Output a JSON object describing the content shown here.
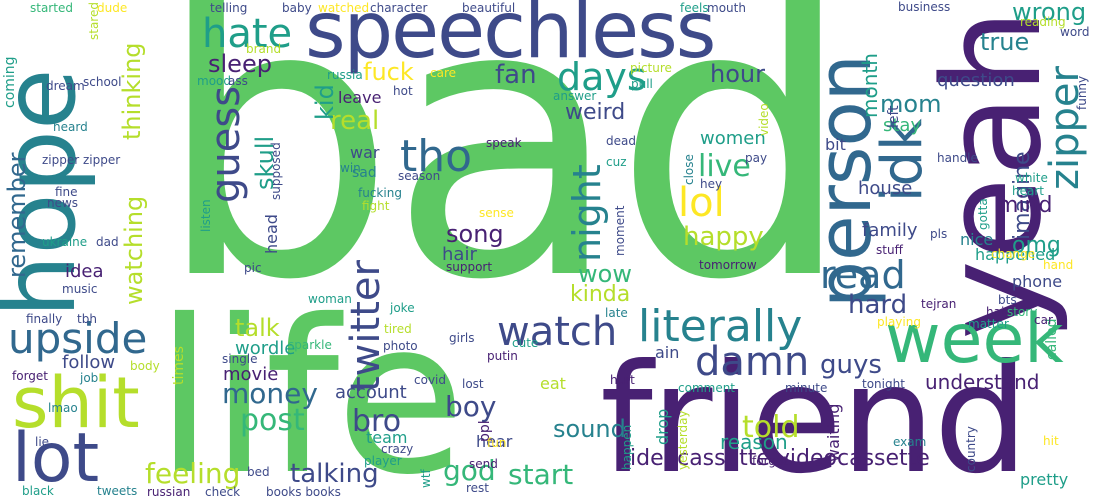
{
  "palette": {
    "dark_purple": "#482173",
    "indigo": "#3e4a89",
    "blue": "#31688e",
    "teal": "#26828e",
    "green_teal": "#1f9e89",
    "green": "#35b779",
    "light_green": "#5dc863",
    "lime": "#b5de2b",
    "yellow": "#fde725"
  },
  "words": [
    {
      "t": "bad",
      "c": "light_green"
    },
    {
      "t": "life",
      "c": "light_green"
    },
    {
      "t": "friend",
      "c": "dark_purple"
    },
    {
      "t": "yeah",
      "c": "dark_purple"
    },
    {
      "t": "speechless",
      "c": "indigo"
    },
    {
      "t": "hope",
      "c": "teal"
    },
    {
      "t": "shit",
      "c": "lime"
    },
    {
      "t": "lot",
      "c": "indigo"
    },
    {
      "t": "person",
      "c": "blue"
    },
    {
      "t": "week",
      "c": "green"
    },
    {
      "t": "idk",
      "c": "blue"
    },
    {
      "t": "upside",
      "c": "blue"
    },
    {
      "t": "literally",
      "c": "teal"
    },
    {
      "t": "watch",
      "c": "indigo"
    },
    {
      "t": "twitter",
      "c": "indigo"
    },
    {
      "t": "tho",
      "c": "blue"
    },
    {
      "t": "days",
      "c": "green_teal"
    },
    {
      "t": "hate",
      "c": "green_teal"
    },
    {
      "t": "guess",
      "c": "indigo"
    },
    {
      "t": "damn",
      "c": "indigo"
    },
    {
      "t": "night",
      "c": "teal"
    },
    {
      "t": "read",
      "c": "blue"
    },
    {
      "t": "lol",
      "c": "yellow"
    },
    {
      "t": "zipper",
      "c": "teal"
    },
    {
      "t": "videocassette videocassette",
      "c": "dark_purple"
    },
    {
      "t": "fan",
      "c": "indigo"
    },
    {
      "t": "live",
      "c": "green"
    },
    {
      "t": "happy",
      "c": "lime"
    },
    {
      "t": "money",
      "c": "blue"
    },
    {
      "t": "post",
      "c": "green"
    },
    {
      "t": "talking",
      "c": "indigo"
    },
    {
      "t": "start",
      "c": "green"
    },
    {
      "t": "feeling",
      "c": "lime"
    },
    {
      "t": "god",
      "c": "green"
    },
    {
      "t": "sound",
      "c": "teal"
    },
    {
      "t": "boy",
      "c": "indigo"
    },
    {
      "t": "told",
      "c": "lime"
    },
    {
      "t": "reason",
      "c": "green_teal"
    },
    {
      "t": "bro",
      "c": "indigo"
    },
    {
      "t": "kinda",
      "c": "lime"
    },
    {
      "t": "wow",
      "c": "green"
    },
    {
      "t": "song",
      "c": "dark_purple"
    },
    {
      "t": "hard",
      "c": "indigo"
    },
    {
      "t": "guys",
      "c": "indigo"
    },
    {
      "t": "talk",
      "c": "lime"
    },
    {
      "t": "remember",
      "c": "blue"
    },
    {
      "t": "watching",
      "c": "lime"
    },
    {
      "t": "thinking",
      "c": "lime"
    },
    {
      "t": "sleep",
      "c": "dark_purple"
    },
    {
      "t": "fuck",
      "c": "yellow"
    },
    {
      "t": "hour",
      "c": "indigo"
    },
    {
      "t": "weird",
      "c": "indigo"
    },
    {
      "t": "real",
      "c": "lime"
    },
    {
      "t": "skull",
      "c": "green_teal"
    },
    {
      "t": "kid",
      "c": "green_teal"
    },
    {
      "t": "mom",
      "c": "teal"
    },
    {
      "t": "wrong",
      "c": "green_teal"
    },
    {
      "t": "true",
      "c": "teal"
    },
    {
      "t": "month",
      "c": "green_teal"
    },
    {
      "t": "imagine",
      "c": "indigo"
    },
    {
      "t": "mind",
      "c": "dark_purple"
    },
    {
      "t": "omg",
      "c": "green_teal"
    },
    {
      "t": "understand",
      "c": "dark_purple"
    },
    {
      "t": "women",
      "c": "green_teal"
    },
    {
      "t": "idea",
      "c": "dark_purple"
    },
    {
      "t": "hair",
      "c": "indigo"
    },
    {
      "t": "follow",
      "c": "indigo"
    },
    {
      "t": "movie",
      "c": "dark_purple"
    },
    {
      "t": "account",
      "c": "indigo"
    },
    {
      "t": "wordle",
      "c": "green_teal"
    },
    {
      "t": "house",
      "c": "indigo"
    },
    {
      "t": "family",
      "c": "indigo"
    },
    {
      "t": "stay",
      "c": "green"
    },
    {
      "t": "question",
      "c": "indigo"
    },
    {
      "t": "happened",
      "c": "green_teal"
    },
    {
      "t": "nice",
      "c": "teal"
    },
    {
      "t": "phone",
      "c": "indigo"
    },
    {
      "t": "hear",
      "c": "indigo"
    },
    {
      "t": "leave",
      "c": "dark_purple"
    },
    {
      "t": "war",
      "c": "indigo"
    },
    {
      "t": "bit",
      "c": "indigo"
    },
    {
      "t": "eat",
      "c": "lime"
    },
    {
      "t": "ain",
      "c": "indigo"
    },
    {
      "t": "team",
      "c": "green_teal"
    },
    {
      "t": "pretty",
      "c": "green_teal"
    },
    {
      "t": "drop",
      "c": "green_teal"
    },
    {
      "t": "waiting",
      "c": "dark_purple"
    },
    {
      "t": "head",
      "c": "indigo"
    },
    {
      "t": "left",
      "c": "indigo"
    },
    {
      "t": "called",
      "c": "green"
    },
    {
      "t": "times",
      "c": "lime"
    },
    {
      "t": "sad",
      "c": "teal"
    },
    {
      "t": "ppl",
      "c": "dark_purple"
    },
    {
      "t": "coming",
      "c": "green_teal"
    },
    {
      "t": "music",
      "c": "indigo"
    },
    {
      "t": "finally",
      "c": "indigo"
    },
    {
      "t": "forget",
      "c": "dark_purple"
    },
    {
      "t": "job",
      "c": "teal"
    },
    {
      "t": "lie",
      "c": "indigo"
    },
    {
      "t": "lmao",
      "c": "teal"
    },
    {
      "t": "black",
      "c": "green_teal"
    },
    {
      "t": "tweets",
      "c": "teal"
    },
    {
      "t": "russian",
      "c": "dark_purple"
    },
    {
      "t": "check",
      "c": "indigo"
    },
    {
      "t": "books books",
      "c": "indigo"
    },
    {
      "t": "wtf",
      "c": "green_teal"
    },
    {
      "t": "rest",
      "c": "indigo"
    },
    {
      "t": "send",
      "c": "dark_purple"
    },
    {
      "t": "crazy",
      "c": "indigo"
    },
    {
      "t": "player",
      "c": "green_teal"
    },
    {
      "t": "covid",
      "c": "indigo"
    },
    {
      "t": "photo",
      "c": "indigo"
    },
    {
      "t": "tired",
      "c": "lime"
    },
    {
      "t": "girls",
      "c": "indigo"
    },
    {
      "t": "putin",
      "c": "dark_purple"
    },
    {
      "t": "cute",
      "c": "green_teal"
    },
    {
      "t": "late",
      "c": "teal"
    },
    {
      "t": "lost",
      "c": "indigo"
    },
    {
      "t": "hurt",
      "c": "dark_purple"
    },
    {
      "t": "comment",
      "c": "green_teal"
    },
    {
      "t": "minute",
      "c": "indigo"
    },
    {
      "t": "tonight",
      "c": "indigo"
    },
    {
      "t": "exam",
      "c": "teal"
    },
    {
      "t": "country",
      "c": "indigo"
    },
    {
      "t": "forgot",
      "c": "dark_purple"
    },
    {
      "t": "yesterday",
      "c": "lime"
    },
    {
      "t": "happen",
      "c": "green_teal"
    },
    {
      "t": "fun",
      "c": "yellow"
    },
    {
      "t": "hit",
      "c": "yellow"
    },
    {
      "t": "car",
      "c": "dark_purple"
    },
    {
      "t": "story",
      "c": "green"
    },
    {
      "t": "hai",
      "c": "dark_purple"
    },
    {
      "t": "matter",
      "c": "green_teal"
    },
    {
      "t": "playing",
      "c": "yellow"
    },
    {
      "t": "bts",
      "c": "indigo"
    },
    {
      "t": "tejran",
      "c": "dark_purple"
    },
    {
      "t": "hand",
      "c": "yellow"
    },
    {
      "t": "change",
      "c": "yellow"
    },
    {
      "t": "pls",
      "c": "indigo"
    },
    {
      "t": "stuff",
      "c": "dark_purple"
    },
    {
      "t": "tomorrow",
      "c": "dark_purple"
    },
    {
      "t": "gotta",
      "c": "green_teal"
    },
    {
      "t": "heart",
      "c": "green_teal"
    },
    {
      "t": "white",
      "c": "green_teal"
    },
    {
      "t": "handle",
      "c": "indigo"
    },
    {
      "t": "hey",
      "c": "indigo"
    },
    {
      "t": "pay",
      "c": "indigo"
    },
    {
      "t": "close",
      "c": "teal"
    },
    {
      "t": "moment",
      "c": "indigo"
    },
    {
      "t": "cuz",
      "c": "green_teal"
    },
    {
      "t": "dead",
      "c": "indigo"
    },
    {
      "t": "speak",
      "c": "dark_purple"
    },
    {
      "t": "sense",
      "c": "yellow"
    },
    {
      "t": "support",
      "c": "dark_purple"
    },
    {
      "t": "season",
      "c": "indigo"
    },
    {
      "t": "fucking",
      "c": "teal"
    },
    {
      "t": "fight",
      "c": "lime"
    },
    {
      "t": "win",
      "c": "teal"
    },
    {
      "t": "russia",
      "c": "green_teal"
    },
    {
      "t": "hot",
      "c": "indigo"
    },
    {
      "t": "answer",
      "c": "green_teal"
    },
    {
      "t": "pull",
      "c": "green_teal"
    },
    {
      "t": "picture",
      "c": "lime"
    },
    {
      "t": "video",
      "c": "lime"
    },
    {
      "t": "feels",
      "c": "green_teal"
    },
    {
      "t": "mouth",
      "c": "indigo"
    },
    {
      "t": "beautiful",
      "c": "indigo"
    },
    {
      "t": "character",
      "c": "indigo"
    },
    {
      "t": "watched",
      "c": "yellow"
    },
    {
      "t": "baby",
      "c": "indigo"
    },
    {
      "t": "telling",
      "c": "indigo"
    },
    {
      "t": "started",
      "c": "green"
    },
    {
      "t": "dude",
      "c": "yellow"
    },
    {
      "t": "stared",
      "c": "lime"
    },
    {
      "t": "brand",
      "c": "lime"
    },
    {
      "t": "mood",
      "c": "green_teal"
    },
    {
      "t": "ass",
      "c": "indigo"
    },
    {
      "t": "school",
      "c": "indigo"
    },
    {
      "t": "dream",
      "c": "indigo"
    },
    {
      "t": "heard",
      "c": "teal"
    },
    {
      "t": "zipper zipper",
      "c": "indigo"
    },
    {
      "t": "fine",
      "c": "indigo"
    },
    {
      "t": "news",
      "c": "indigo"
    },
    {
      "t": "ukraine",
      "c": "green_teal"
    },
    {
      "t": "dad",
      "c": "indigo"
    },
    {
      "t": "listen",
      "c": "green_teal"
    },
    {
      "t": "supposed",
      "c": "indigo"
    },
    {
      "t": "pic",
      "c": "indigo"
    },
    {
      "t": "woman",
      "c": "green_teal"
    },
    {
      "t": "joke",
      "c": "green_teal"
    },
    {
      "t": "sparkle",
      "c": "green"
    },
    {
      "t": "single",
      "c": "indigo"
    },
    {
      "t": "body",
      "c": "lime"
    },
    {
      "t": "tbh",
      "c": "indigo"
    },
    {
      "t": "care",
      "c": "yellow"
    },
    {
      "t": "business",
      "c": "indigo"
    },
    {
      "t": "reading",
      "c": "lime"
    },
    {
      "t": "word",
      "c": "indigo"
    },
    {
      "t": "funny",
      "c": "indigo"
    },
    {
      "t": "bed",
      "c": "indigo"
    }
  ]
}
